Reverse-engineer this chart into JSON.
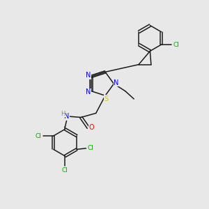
{
  "bg_color": "#e8e8e8",
  "bond_color": "#1a1a1a",
  "atoms": {
    "N": "#0000ff",
    "S": "#cccc00",
    "O": "#ff0000",
    "Cl": "#00aa00",
    "H": "#888888"
  },
  "layout": {
    "xlim": [
      0,
      10
    ],
    "ylim": [
      0,
      10
    ]
  }
}
